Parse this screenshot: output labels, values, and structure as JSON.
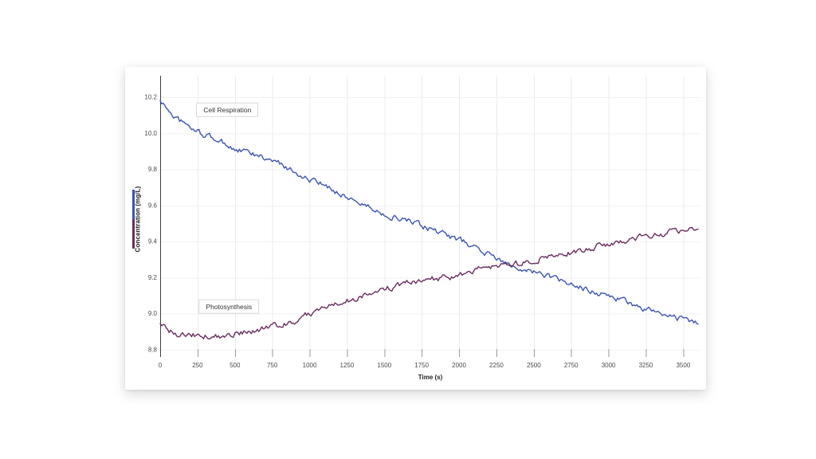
{
  "page": {
    "background": "#ffffff"
  },
  "card": {
    "background": "#ffffff"
  },
  "chart_data": {
    "type": "line",
    "title": "",
    "xlabel": "Time (s)",
    "ylabel": "Concentration (mg/L)",
    "xlim": [
      0,
      3610
    ],
    "ylim": [
      8.76,
      10.32
    ],
    "grid": true,
    "legend_position": "left-axis-swatch",
    "x_ticks": [
      0,
      250,
      500,
      750,
      1000,
      1250,
      1500,
      1750,
      2000,
      2250,
      2500,
      2750,
      3000,
      3250,
      3500
    ],
    "y_ticks": [
      8.8,
      9.0,
      9.2,
      9.4,
      9.6,
      9.8,
      10.0,
      10.2
    ],
    "x": [
      0,
      100,
      200,
      300,
      400,
      500,
      600,
      700,
      800,
      900,
      1000,
      1100,
      1200,
      1300,
      1400,
      1500,
      1600,
      1700,
      1800,
      1900,
      2000,
      2100,
      2200,
      2300,
      2400,
      2500,
      2600,
      2700,
      2800,
      2900,
      3000,
      3100,
      3200,
      3300,
      3400,
      3500,
      3600
    ],
    "series": [
      {
        "name": "Cell Respiration",
        "color": "#3b54b4",
        "annotation": {
          "label": "Cell Respiration",
          "x": 450,
          "y": 10.13
        },
        "values": [
          10.18,
          10.09,
          10.03,
          9.99,
          9.96,
          9.91,
          9.89,
          9.86,
          9.83,
          9.79,
          9.74,
          9.71,
          9.67,
          9.63,
          9.59,
          9.55,
          9.53,
          9.5,
          9.47,
          9.44,
          9.41,
          9.37,
          9.33,
          9.28,
          9.26,
          9.23,
          9.21,
          9.17,
          9.15,
          9.12,
          9.1,
          9.07,
          9.04,
          9.01,
          8.98,
          8.97,
          8.95
        ]
      },
      {
        "name": "Photosynthesis",
        "color": "#6b2d5f",
        "annotation": {
          "label": "Photosynthesis",
          "x": 460,
          "y": 9.04
        },
        "values": [
          8.94,
          8.89,
          8.88,
          8.88,
          8.87,
          8.89,
          8.9,
          8.92,
          8.94,
          8.96,
          9.0,
          9.03,
          9.06,
          9.08,
          9.11,
          9.14,
          9.16,
          9.18,
          9.19,
          9.2,
          9.21,
          9.24,
          9.26,
          9.27,
          9.28,
          9.3,
          9.32,
          9.33,
          9.35,
          9.37,
          9.39,
          9.4,
          9.42,
          9.43,
          9.45,
          9.46,
          9.47
        ]
      }
    ],
    "axis_colors": {
      "y_axis_line": "#3f3f3f",
      "tick_mark": "#9a9a9a",
      "tick_label": "#4a4a4a",
      "grid_vertical": "#ebebeb",
      "grid_horizontal": "#f1f1f1"
    }
  }
}
